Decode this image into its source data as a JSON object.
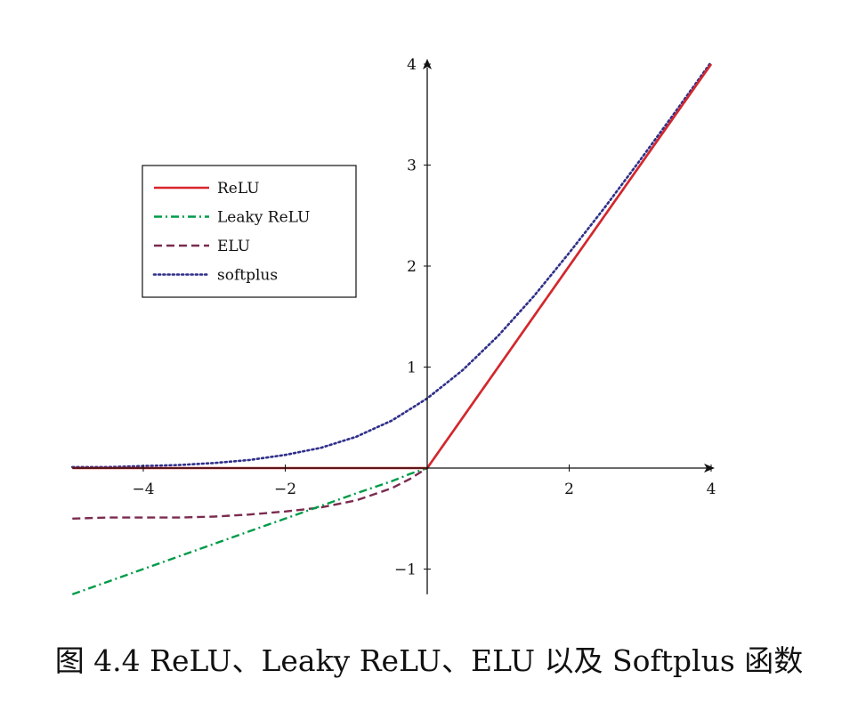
{
  "caption": "图 4.4 ReLU、Leaky ReLU、ELU 以及 Softplus 函数",
  "chart_data": {
    "type": "line",
    "title": "",
    "xlabel": "",
    "ylabel": "",
    "xlim": [
      -5,
      4
    ],
    "ylim": [
      -1.25,
      4
    ],
    "x_ticks": [
      -4,
      -2,
      2,
      4
    ],
    "x_tick_labels": [
      "−4",
      "−2",
      "2",
      "4"
    ],
    "y_ticks": [
      -1,
      1,
      2,
      3,
      4
    ],
    "y_tick_labels": [
      "−1",
      "1",
      "2",
      "3",
      "4"
    ],
    "grid": false,
    "legend_position": "top-left",
    "x": [
      -5,
      -4.5,
      -4,
      -3.5,
      -3,
      -2.5,
      -2,
      -1.5,
      -1,
      -0.75,
      -0.5,
      -0.25,
      0,
      0.5,
      1,
      1.5,
      2,
      2.5,
      3,
      3.5,
      4
    ],
    "series": [
      {
        "name": "ReLU",
        "color": "#d7262d",
        "dash": "solid",
        "values": [
          0,
          0,
          0,
          0,
          0,
          0,
          0,
          0,
          0,
          0,
          0,
          0,
          0,
          0.5,
          1,
          1.5,
          2,
          2.5,
          3,
          3.5,
          4
        ]
      },
      {
        "name": "Leaky ReLU",
        "color": "#009b48",
        "dash": "dashdot",
        "values": [
          -1.25,
          -1.125,
          -1,
          -0.875,
          -0.75,
          -0.625,
          -0.5,
          -0.375,
          -0.25,
          -0.19,
          -0.13,
          -0.06,
          0,
          0.5,
          1,
          1.5,
          2,
          2.5,
          3,
          3.5,
          4
        ]
      },
      {
        "name": "ELU",
        "color": "#7b2b4f",
        "dash": "dashed",
        "values": [
          -0.5,
          -0.49,
          -0.49,
          -0.49,
          -0.48,
          -0.46,
          -0.43,
          -0.39,
          -0.32,
          -0.26,
          -0.2,
          -0.11,
          0,
          0.5,
          1,
          1.5,
          2,
          2.5,
          3,
          3.5,
          4
        ]
      },
      {
        "name": "softplus",
        "color": "#2f2f8a",
        "dash": "dotted",
        "values": [
          0.01,
          0.01,
          0.02,
          0.03,
          0.05,
          0.08,
          0.13,
          0.2,
          0.31,
          0.39,
          0.47,
          0.58,
          0.69,
          0.97,
          1.31,
          1.7,
          2.13,
          2.58,
          3.05,
          3.53,
          4.02
        ]
      }
    ]
  }
}
